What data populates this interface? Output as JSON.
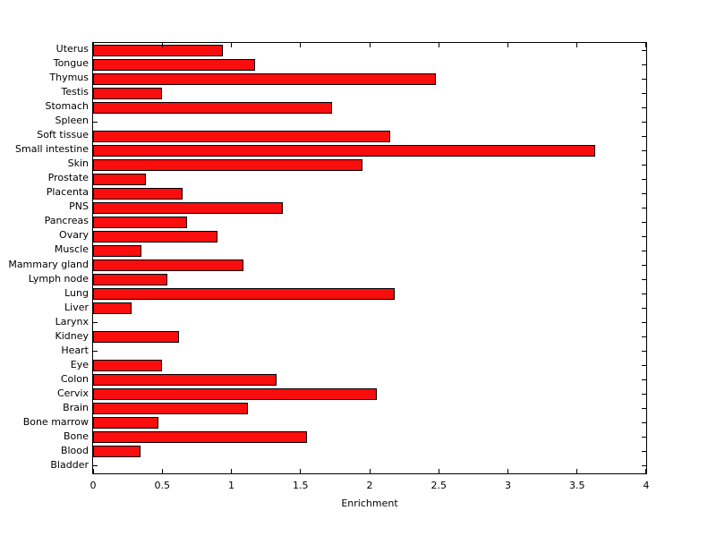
{
  "chart_data": {
    "type": "bar",
    "orientation": "horizontal",
    "title": "",
    "xlabel": "Enrichment",
    "ylabel": "",
    "xlim": [
      0,
      4
    ],
    "xticks": [
      0,
      0.5,
      1,
      1.5,
      2,
      2.5,
      3,
      3.5,
      4
    ],
    "xtick_labels": [
      "0",
      "0.5",
      "1",
      "1.5",
      "2",
      "2.5",
      "3",
      "3.5",
      "4"
    ],
    "categories": [
      "Uterus",
      "Tongue",
      "Thymus",
      "Testis",
      "Stomach",
      "Spleen",
      "Soft tissue",
      "Small intestine",
      "Skin",
      "Prostate",
      "Placenta",
      "PNS",
      "Pancreas",
      "Ovary",
      "Muscle",
      "Mammary gland",
      "Lymph node",
      "Lung",
      "Liver",
      "Larynx",
      "Kidney",
      "Heart",
      "Eye",
      "Colon",
      "Cervix",
      "Brain",
      "Bone marrow",
      "Bone",
      "Blood",
      "Bladder"
    ],
    "values": [
      0.94,
      1.17,
      2.48,
      0.5,
      1.73,
      0,
      2.15,
      3.63,
      1.95,
      0.38,
      0.65,
      1.37,
      0.68,
      0.9,
      0.35,
      1.09,
      0.54,
      2.18,
      0.28,
      0,
      0.62,
      0,
      0.5,
      1.33,
      2.05,
      1.12,
      0.47,
      1.55,
      0.34,
      0
    ],
    "bar_color": "#f90d0d",
    "bar_edge_color": "#000000",
    "grid": false,
    "legend": false,
    "background_color": "#ffffff"
  }
}
